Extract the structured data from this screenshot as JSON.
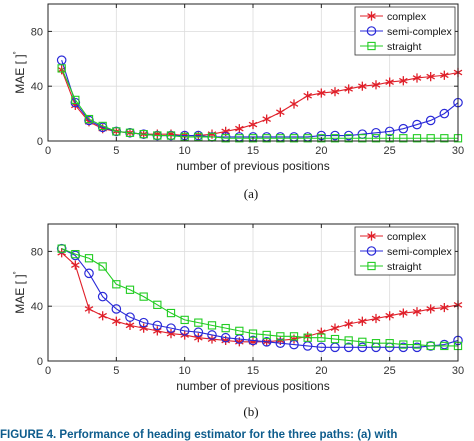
{
  "colors": {
    "complex": "#e0202a",
    "semi_complex": "#2a2ad8",
    "straight": "#22cc22"
  },
  "caption": "FIGURE 4.  Performance of heading estimator for the three paths: (a) with",
  "chart_data": [
    {
      "type": "line",
      "sublabel": "(a)",
      "xlabel": "number of previous positions",
      "ylabel": "MAE [ ]",
      "ylabel_suffix": "°",
      "xlim": [
        0,
        30
      ],
      "ylim": [
        0,
        100
      ],
      "xticks": [
        0,
        5,
        10,
        15,
        20,
        25,
        30
      ],
      "yticks": [
        0,
        40,
        80
      ],
      "grid": true,
      "legend_position": "top-right",
      "x": [
        1,
        2,
        3,
        4,
        5,
        6,
        7,
        8,
        9,
        10,
        11,
        12,
        13,
        14,
        15,
        16,
        17,
        18,
        19,
        20,
        21,
        22,
        23,
        24,
        25,
        26,
        27,
        28,
        29,
        30
      ],
      "series": [
        {
          "name": "complex",
          "marker": "star",
          "color_key": "complex",
          "values": [
            52,
            26,
            14,
            9,
            7,
            6,
            5,
            5,
            5,
            4,
            4,
            5,
            7,
            9,
            12,
            16,
            21,
            27,
            33,
            35,
            36,
            38,
            40,
            41,
            43,
            44,
            46,
            47,
            48,
            50
          ]
        },
        {
          "name": "semi-complex",
          "marker": "circle",
          "color_key": "semi_complex",
          "values": [
            59,
            28,
            15,
            10,
            7,
            6,
            5,
            4,
            4,
            4,
            4,
            3,
            3,
            3,
            3,
            3,
            3,
            3,
            3,
            4,
            4,
            4,
            5,
            6,
            7,
            9,
            12,
            15,
            20,
            28
          ]
        },
        {
          "name": "straight",
          "marker": "square",
          "color_key": "straight",
          "values": [
            53,
            30,
            16,
            11,
            7,
            6,
            5,
            4,
            4,
            3,
            3,
            3,
            2,
            2,
            2,
            2,
            2,
            2,
            2,
            2,
            2,
            2,
            2,
            2,
            2,
            2,
            2,
            2,
            2,
            2
          ]
        }
      ]
    },
    {
      "type": "line",
      "sublabel": "(b)",
      "xlabel": "number of previous positions",
      "ylabel": "MAE [ ]",
      "ylabel_suffix": "°",
      "xlim": [
        0,
        30
      ],
      "ylim": [
        0,
        100
      ],
      "xticks": [
        0,
        5,
        10,
        15,
        20,
        25,
        30
      ],
      "yticks": [
        0,
        40,
        80
      ],
      "grid": true,
      "legend_position": "top-right",
      "x": [
        1,
        2,
        3,
        4,
        5,
        6,
        7,
        8,
        9,
        10,
        11,
        12,
        13,
        14,
        15,
        16,
        17,
        18,
        19,
        20,
        21,
        22,
        23,
        24,
        25,
        26,
        27,
        28,
        29,
        30
      ],
      "series": [
        {
          "name": "complex",
          "marker": "star",
          "color_key": "complex",
          "values": [
            79,
            70,
            38,
            33,
            29,
            26,
            24,
            22,
            20,
            19,
            17,
            16,
            15,
            14,
            14,
            14,
            15,
            16,
            18,
            21,
            24,
            27,
            29,
            31,
            33,
            35,
            36,
            38,
            39,
            41
          ]
        },
        {
          "name": "semi-complex",
          "marker": "circle",
          "color_key": "semi_complex",
          "values": [
            82,
            77,
            64,
            47,
            38,
            32,
            28,
            26,
            24,
            22,
            21,
            19,
            17,
            16,
            15,
            14,
            13,
            12,
            11,
            10,
            10,
            10,
            10,
            10,
            10,
            10,
            10,
            11,
            12,
            15
          ]
        },
        {
          "name": "straight",
          "marker": "square",
          "color_key": "straight",
          "values": [
            82,
            78,
            75,
            69,
            56,
            52,
            47,
            41,
            35,
            30,
            28,
            26,
            24,
            22,
            20,
            19,
            18,
            18,
            17,
            17,
            16,
            15,
            14,
            13,
            13,
            12,
            12,
            11,
            11,
            11
          ]
        }
      ]
    }
  ]
}
